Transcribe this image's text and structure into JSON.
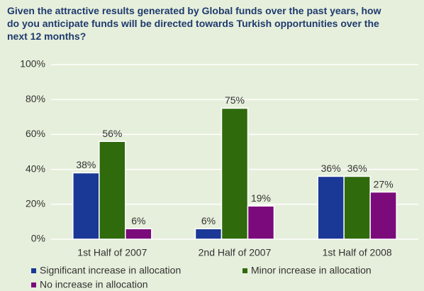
{
  "chart_data": {
    "type": "bar",
    "title": "Given the attractive results generated by Global funds over the past years, how do you anticipate funds will be directed towards Turkish opportunities over the next 12 months?",
    "categories": [
      "1st Half of 2007",
      "2nd Half of 2007",
      "1st Half of 2008"
    ],
    "series": [
      {
        "name": "Significant increase in allocation",
        "color": "#1a3896",
        "values": [
          38,
          6,
          36
        ],
        "value_labels": [
          "38%",
          "6%",
          "36%"
        ]
      },
      {
        "name": "Minor increase in allocation",
        "color": "#2f6a0c",
        "values": [
          56,
          75,
          36
        ],
        "value_labels": [
          "56%",
          "75%",
          "36%"
        ]
      },
      {
        "name": "No increase in allocation",
        "color": "#7b0a7b",
        "values": [
          6,
          19,
          27
        ],
        "value_labels": [
          "6%",
          "19%",
          "27%"
        ]
      }
    ],
    "ylim": [
      0,
      100
    ],
    "yticks": [
      {
        "value": 0,
        "label": "0%"
      },
      {
        "value": 20,
        "label": "20%"
      },
      {
        "value": 40,
        "label": "40%"
      },
      {
        "value": 60,
        "label": "60%"
      },
      {
        "value": 80,
        "label": "80%"
      },
      {
        "value": 100,
        "label": "100%"
      }
    ],
    "grid": true
  }
}
